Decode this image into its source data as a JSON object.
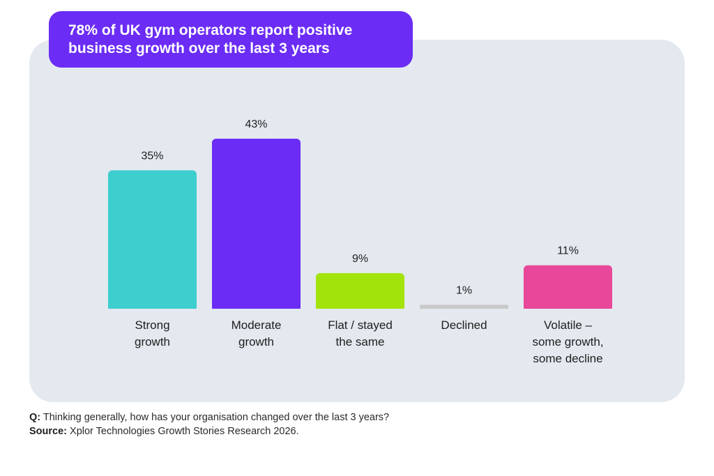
{
  "title_lines": [
    "78% of UK gym operators report positive",
    "business growth over the last 3 years"
  ],
  "chart_data": {
    "type": "bar",
    "categories": [
      [
        "Strong",
        "growth"
      ],
      [
        "Moderate",
        "growth"
      ],
      [
        "Flat / stayed",
        "the same"
      ],
      [
        "Declined"
      ],
      [
        "Volatile –",
        "some growth,",
        "some decline"
      ]
    ],
    "values": [
      35,
      43,
      9,
      1,
      11
    ],
    "value_labels": [
      "35%",
      "43%",
      "9%",
      "1%",
      "11%"
    ],
    "colors": [
      "#3ecece",
      "#6b2cf5",
      "#a3e30c",
      "#c8c8c8",
      "#e8479a"
    ],
    "ylim": [
      0,
      43
    ],
    "grid": false,
    "legend": "none"
  },
  "footnote": {
    "q_label": "Q:",
    "q_text": " Thinking generally, how has your organisation changed over the last 3 years?",
    "source_label": "Source:",
    "source_text": " Xplor Technologies Growth Stories Research 2026."
  }
}
